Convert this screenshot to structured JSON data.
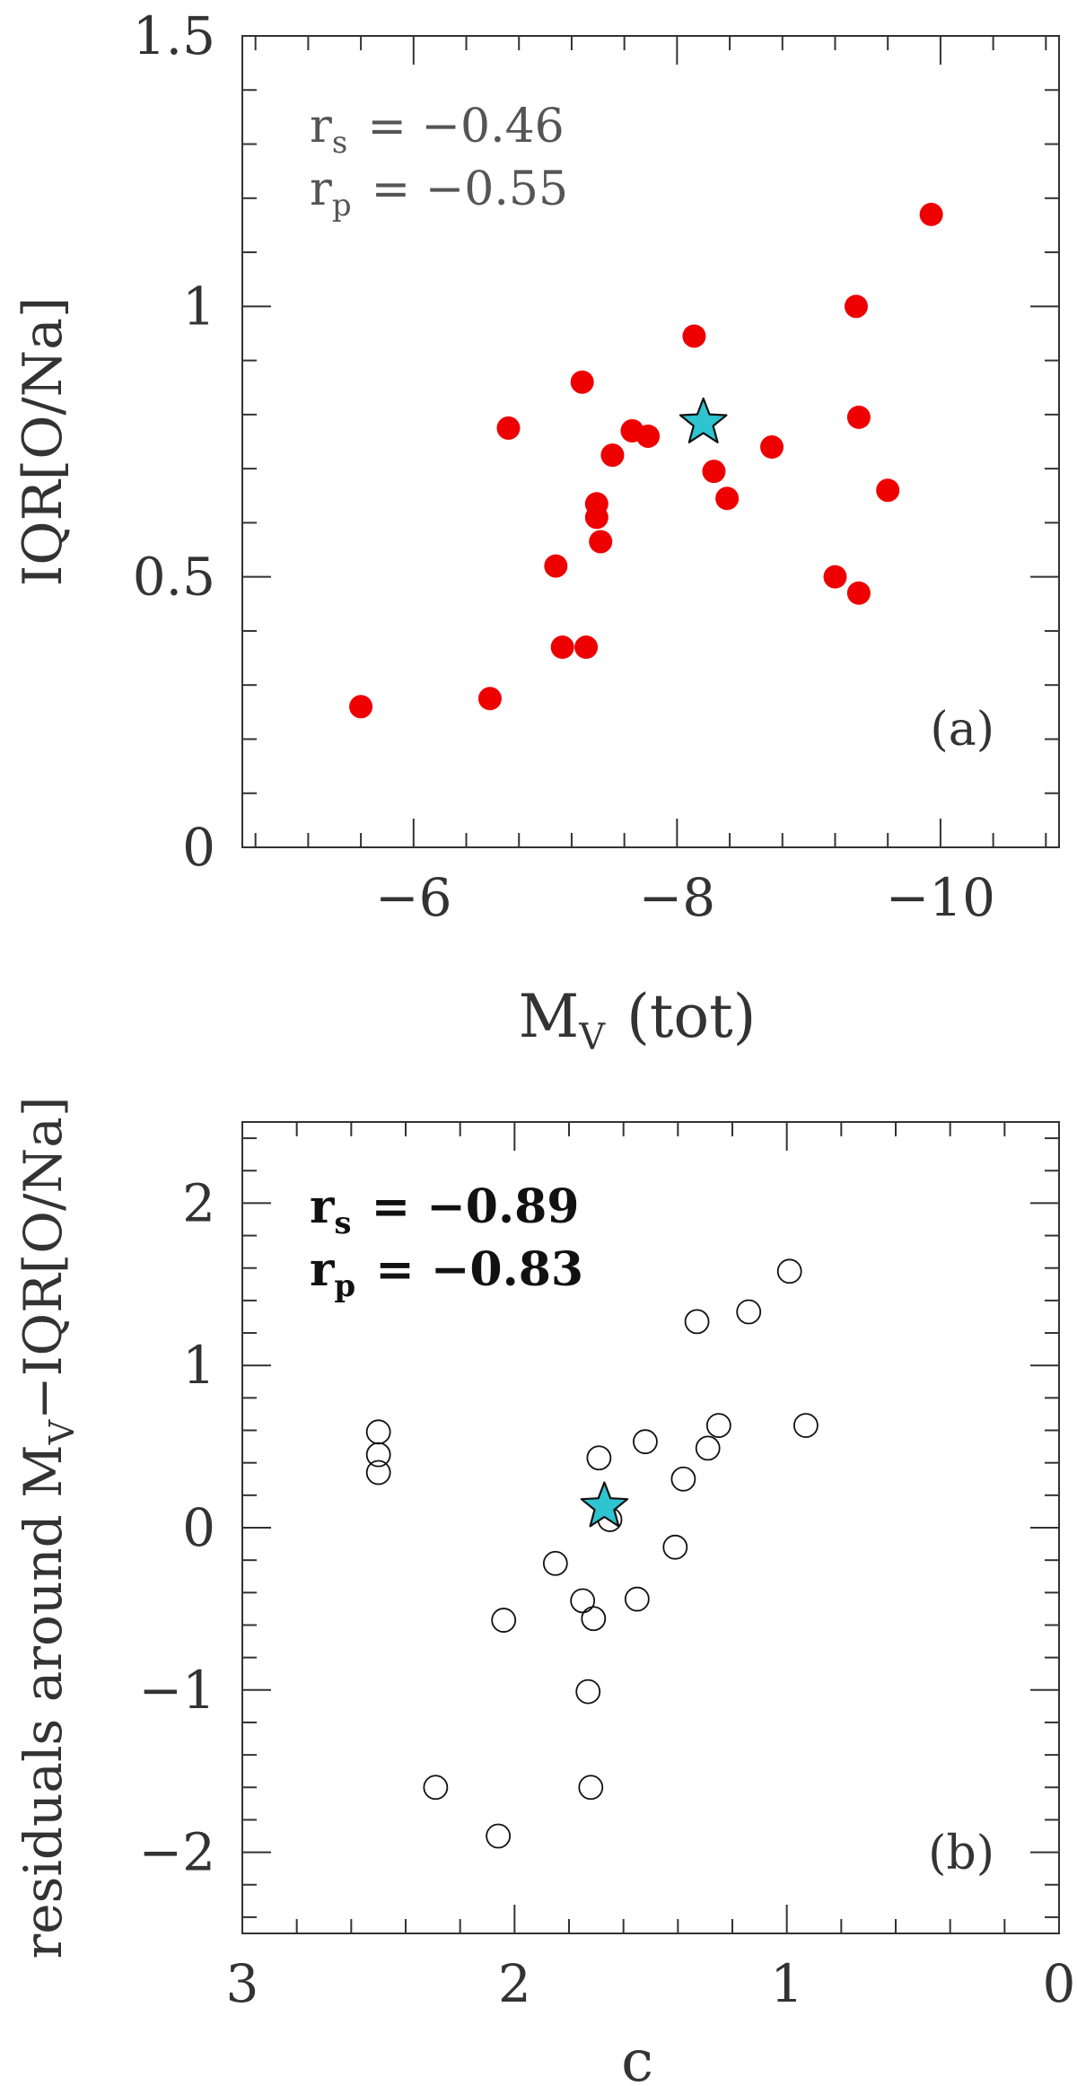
{
  "chart_data": [
    {
      "type": "scatter",
      "panel_label": "(a)",
      "xlabel": "M",
      "xlabel_sub": "V",
      "xlabel_suffix": "(tot)",
      "ylabel": "IQR[O/Na]",
      "xlim": [
        -4.7,
        -10.9
      ],
      "ylim": [
        0,
        1.5
      ],
      "xticks": [
        -6,
        -8,
        -10
      ],
      "xtick_labels": [
        "−6",
        "−8",
        "−10"
      ],
      "yticks": [
        0,
        0.5,
        1,
        1.5
      ],
      "ytick_labels": [
        "0",
        "0.5",
        "1",
        "1.5"
      ],
      "stats": [
        {
          "sym": "r",
          "sub": "s",
          "text": "= −0.46"
        },
        {
          "sym": "r",
          "sub": "p",
          "text": "= −0.55"
        }
      ],
      "point_color": "#ee0000",
      "highlight_color": "#2ec4d0",
      "points": [
        {
          "x": -5.6,
          "y": 0.26
        },
        {
          "x": -6.58,
          "y": 0.275
        },
        {
          "x": -6.72,
          "y": 0.775
        },
        {
          "x": -7.08,
          "y": 0.52
        },
        {
          "x": -7.13,
          "y": 0.37
        },
        {
          "x": -7.31,
          "y": 0.37
        },
        {
          "x": -7.28,
          "y": 0.86
        },
        {
          "x": -7.39,
          "y": 0.635
        },
        {
          "x": -7.39,
          "y": 0.61
        },
        {
          "x": -7.42,
          "y": 0.565
        },
        {
          "x": -7.51,
          "y": 0.725
        },
        {
          "x": -7.66,
          "y": 0.77
        },
        {
          "x": -7.78,
          "y": 0.76
        },
        {
          "x": -8.13,
          "y": 0.945
        },
        {
          "x": -8.28,
          "y": 0.695
        },
        {
          "x": -8.38,
          "y": 0.645
        },
        {
          "x": -8.72,
          "y": 0.74
        },
        {
          "x": -9.2,
          "y": 0.5
        },
        {
          "x": -9.36,
          "y": 1.0
        },
        {
          "x": -9.38,
          "y": 0.795
        },
        {
          "x": -9.38,
          "y": 0.47
        },
        {
          "x": -9.6,
          "y": 0.66
        },
        {
          "x": -9.93,
          "y": 1.17
        }
      ],
      "highlight": {
        "x": -8.2,
        "y": 0.785
      }
    },
    {
      "type": "scatter",
      "panel_label": "(b)",
      "xlabel": "c",
      "ylabel_prefix": "residuals around M",
      "ylabel_sub": "V",
      "ylabel_suffix": "−IQR[O/Na]",
      "xlim": [
        3,
        0
      ],
      "ylim": [
        -2.5,
        2.5
      ],
      "xticks": [
        3,
        2,
        1,
        0
      ],
      "xtick_labels": [
        "3",
        "2",
        "1",
        "0"
      ],
      "yticks": [
        -2,
        -1,
        0,
        1,
        2
      ],
      "ytick_labels": [
        "−2",
        "−1",
        "0",
        "1",
        "2"
      ],
      "stats": [
        {
          "sym": "r",
          "sub": "s",
          "text": "= −0.89"
        },
        {
          "sym": "r",
          "sub": "p",
          "text": "= −0.83"
        }
      ],
      "highlight_color": "#2ec4d0",
      "points": [
        {
          "x": 2.5,
          "y": 0.59
        },
        {
          "x": 2.5,
          "y": 0.45
        },
        {
          "x": 2.5,
          "y": 0.34
        },
        {
          "x": 2.29,
          "y": -1.6
        },
        {
          "x": 2.06,
          "y": -1.9
        },
        {
          "x": 2.04,
          "y": -0.57
        },
        {
          "x": 1.85,
          "y": -0.22
        },
        {
          "x": 1.75,
          "y": -0.45
        },
        {
          "x": 1.73,
          "y": -1.01
        },
        {
          "x": 1.72,
          "y": -1.6
        },
        {
          "x": 1.71,
          "y": -0.56
        },
        {
          "x": 1.69,
          "y": 0.43
        },
        {
          "x": 1.65,
          "y": 0.05
        },
        {
          "x": 1.55,
          "y": -0.44
        },
        {
          "x": 1.52,
          "y": 0.53
        },
        {
          "x": 1.41,
          "y": -0.12
        },
        {
          "x": 1.38,
          "y": 0.3
        },
        {
          "x": 1.33,
          "y": 1.27
        },
        {
          "x": 1.29,
          "y": 0.49
        },
        {
          "x": 1.25,
          "y": 0.63
        },
        {
          "x": 1.14,
          "y": 1.33
        },
        {
          "x": 0.99,
          "y": 1.58
        },
        {
          "x": 0.93,
          "y": 0.63
        }
      ],
      "highlight": {
        "x": 1.67,
        "y": 0.13
      }
    }
  ]
}
